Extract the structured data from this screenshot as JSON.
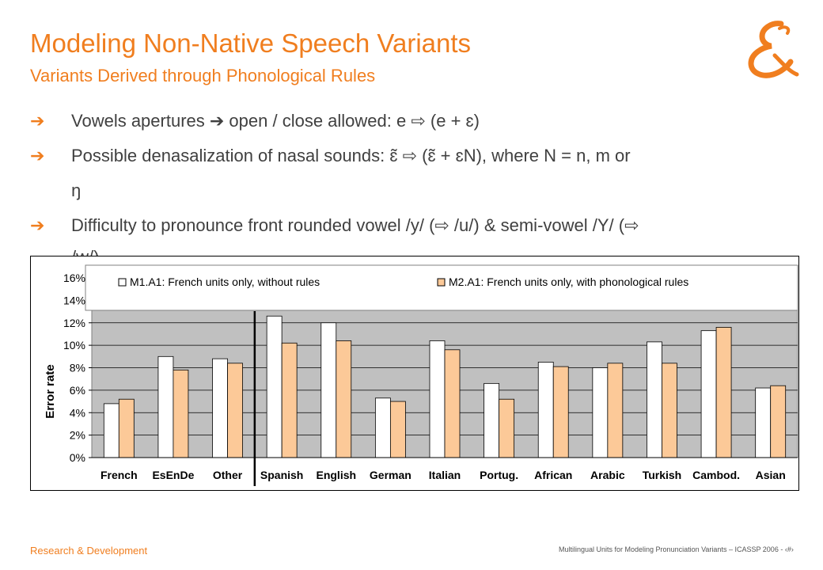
{
  "slide": {
    "title": "Modeling Non-Native Speech Variants",
    "subtitle": "Variants Derived through Phonological Rules",
    "bullets": [
      {
        "text": "Vowels apertures ➔ open / close allowed:   e ⇨ (e + ɛ)"
      },
      {
        "text": "Possible denasalization of nasal sounds:      ɛ̃ ⇨ (ɛ̃ + ɛN),  where N = n, m or"
      },
      {
        "text": "ŋ"
      },
      {
        "text": "Difficulty to pronounce front rounded vowel /y/ (⇨ /u/)  & semi-vowel /Y/ (⇨"
      },
      {
        "text": "/w/)"
      }
    ],
    "bullet_arrow": "➔",
    "footer_left": "Research & Development",
    "footer_right": "Multilingual Units for Modeling Pronunciation Variants – ICASSP 2006 - ‹#›"
  },
  "chart_data": {
    "type": "bar",
    "categories": [
      "French",
      "EsEnDe",
      "Other",
      "Spanish",
      "English",
      "German",
      "Italian",
      "Portug.",
      "African",
      "Arabic",
      "Turkish",
      "Cambod.",
      "Asian"
    ],
    "series": [
      {
        "name": "M1.A1: French units only, without rules",
        "color": "#ffffff",
        "values": [
          4.8,
          9.0,
          8.8,
          12.6,
          12.0,
          5.3,
          10.4,
          6.6,
          8.5,
          8.0,
          10.3,
          11.3,
          6.2
        ]
      },
      {
        "name": "M2.A1: French units only, with phonological rules",
        "color": "#fcc998",
        "values": [
          5.2,
          7.8,
          8.4,
          10.2,
          10.4,
          5.0,
          9.6,
          5.2,
          8.1,
          8.4,
          8.4,
          11.6,
          6.4
        ]
      }
    ],
    "ylabel": "Error rate",
    "ylim": [
      0,
      16
    ],
    "yticks": [
      "0%",
      "2%",
      "4%",
      "6%",
      "8%",
      "10%",
      "12%",
      "14%",
      "16%"
    ],
    "grid": true,
    "legend_position": "top",
    "plot_background": "#c0c0c0",
    "separator_after_index": 2
  }
}
